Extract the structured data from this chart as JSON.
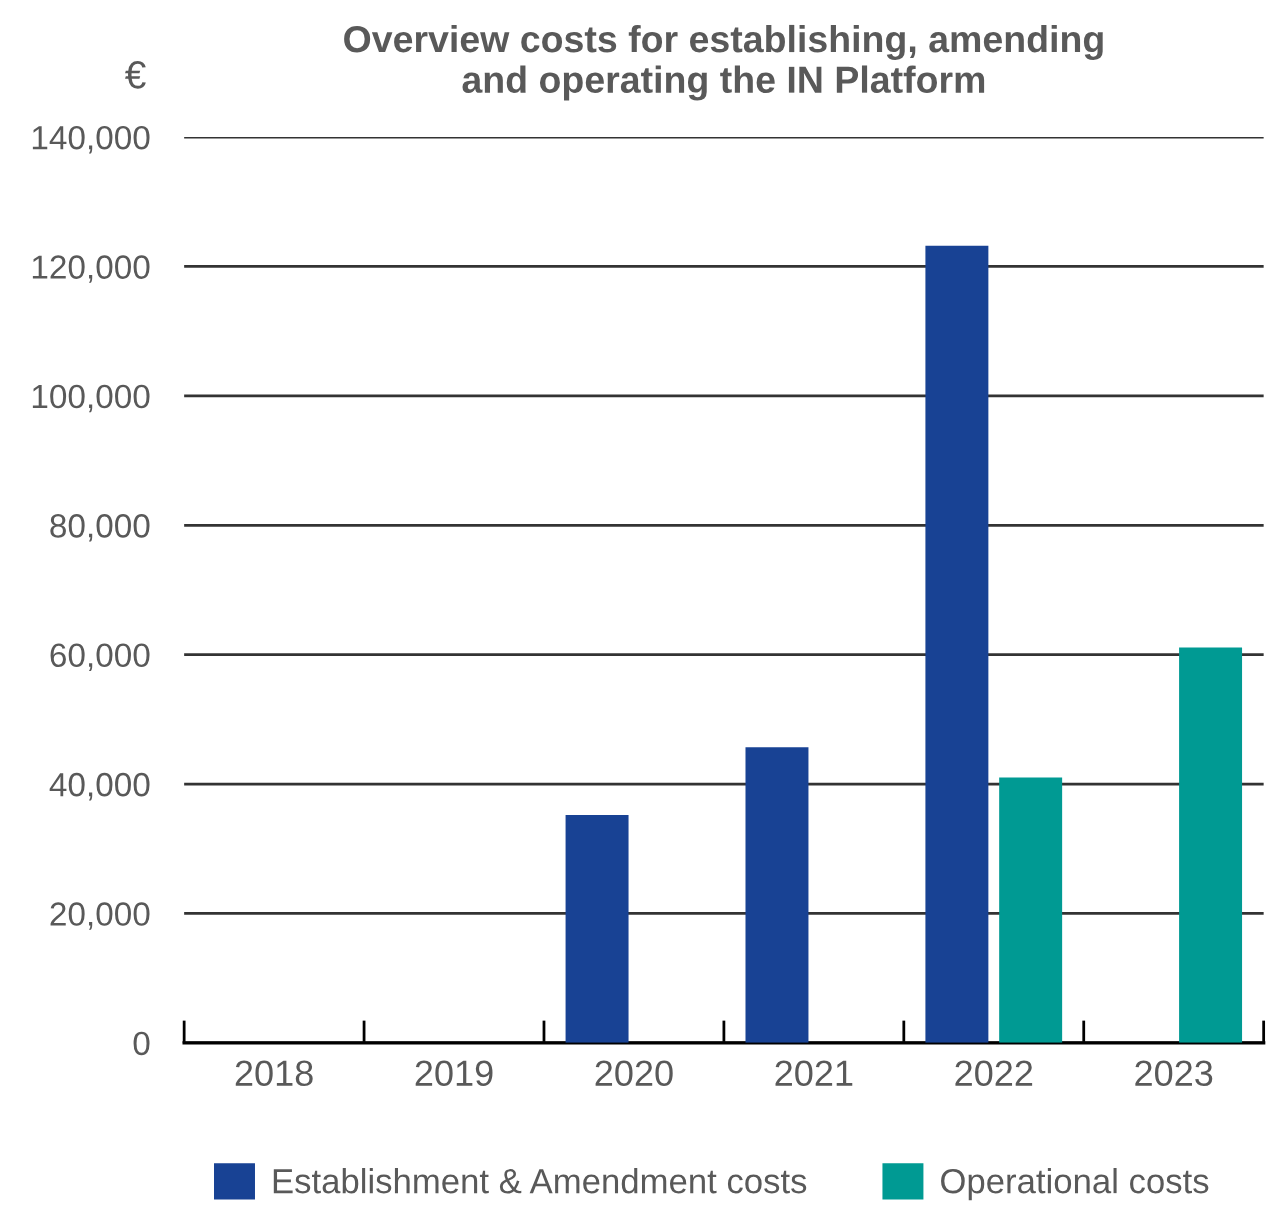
{
  "chart_data": {
    "type": "bar",
    "title": "Overview costs for establishing, amending\nand operating the IN Platform",
    "ylabel": "€",
    "categories": [
      "2018",
      "2019",
      "2020",
      "2021",
      "2022",
      "2023"
    ],
    "series": [
      {
        "name": "Establishment & Amendment costs",
        "color": "#184294",
        "values": [
          null,
          null,
          35200,
          45700,
          123200,
          null
        ]
      },
      {
        "name": "Operational costs",
        "color": "#009a93",
        "values": [
          null,
          null,
          null,
          null,
          41000,
          61100
        ]
      }
    ],
    "ylim": [
      0,
      140000
    ],
    "yticks": [
      {
        "value": 0,
        "label": "0"
      },
      {
        "value": 20000,
        "label": "20,000"
      },
      {
        "value": 40000,
        "label": "40,000"
      },
      {
        "value": 60000,
        "label": "60,000"
      },
      {
        "value": 80000,
        "label": "80,000"
      },
      {
        "value": 100000,
        "label": "100,000"
      },
      {
        "value": 120000,
        "label": "120,000"
      },
      {
        "value": 140000,
        "label": "140,000"
      }
    ],
    "grid": "y",
    "legend": "bottom"
  }
}
